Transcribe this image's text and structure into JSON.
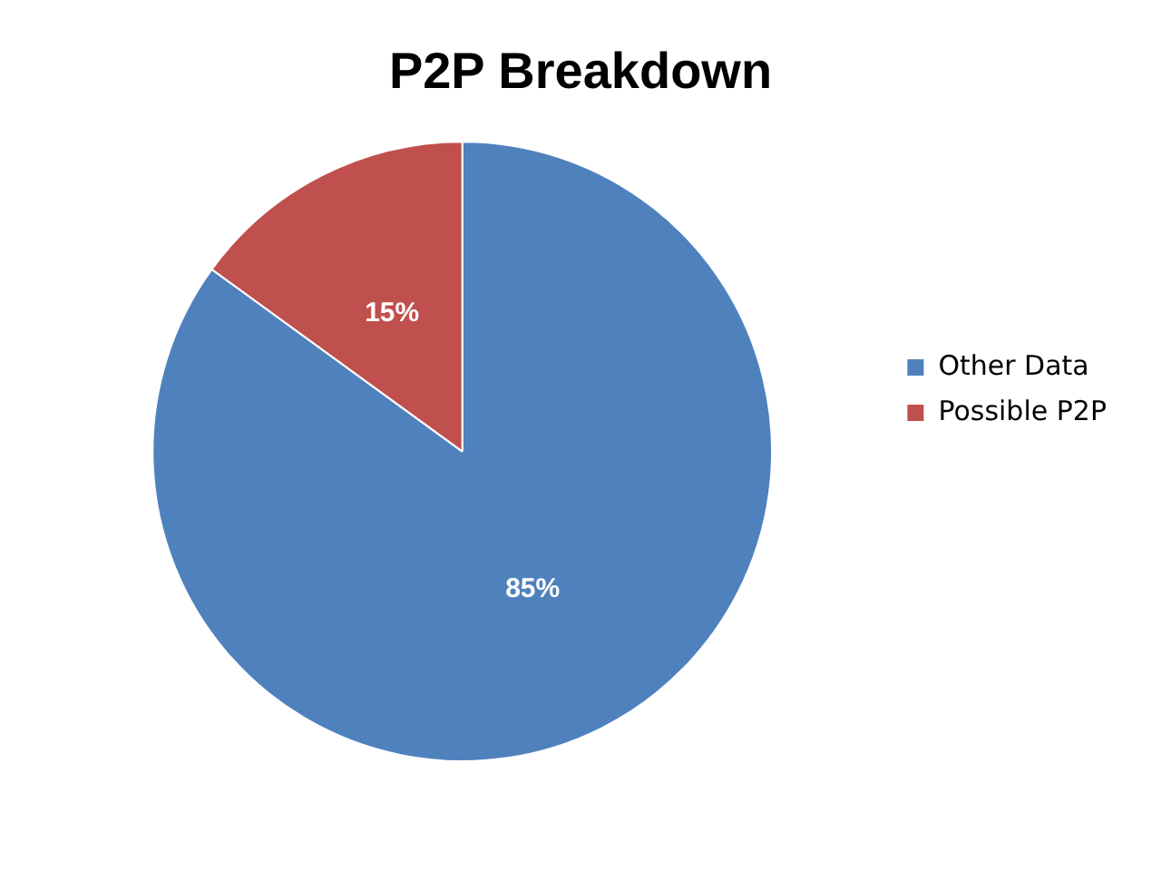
{
  "chart_data": {
    "type": "pie",
    "title": "P2P Breakdown",
    "categories": [
      "Other Data",
      "Possible P2P"
    ],
    "values": [
      85,
      15
    ],
    "colors": [
      "#4f81bd",
      "#c0504d"
    ],
    "value_labels": [
      "85%",
      "15%"
    ],
    "legend": "right"
  }
}
